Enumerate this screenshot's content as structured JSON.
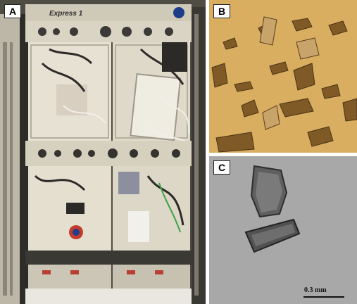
{
  "panels": {
    "a": {
      "tag": "A",
      "rack_label": "Express 1"
    },
    "b": {
      "tag": "B"
    },
    "c": {
      "tag": "C",
      "scale_label": "0.3 mm"
    }
  }
}
